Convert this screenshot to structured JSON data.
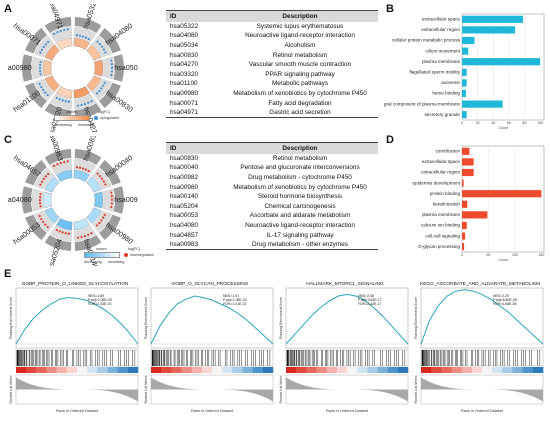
{
  "letters": {
    "a": "A",
    "b": "B",
    "c": "C",
    "d": "D",
    "e": "E"
  },
  "circos_a": {
    "labels": [
      "hsa05322",
      "hsa04080",
      "hsa05034",
      "hsa00830",
      "hsa04270",
      "hsa03320",
      "hsa01100",
      "hsa00980",
      "hsa00071",
      "hsa04971"
    ],
    "legend_title": "zscore",
    "legend_left": "decreasing",
    "legend_right": "increasing",
    "legend2_title": "log(FC)",
    "legend2_right": "upregulated",
    "accent": "#f08a4b",
    "dot": "#3f8fd8"
  },
  "circos_c": {
    "labels": [
      "hsa00830",
      "hsa00040",
      "hsa00982",
      "hsa00980",
      "hsa00140",
      "hsa05204",
      "hsa00053",
      "hsa04080",
      "hsa04657",
      "hsa00983"
    ],
    "legend_title": "zscore",
    "legend_left": "decreasing",
    "legend_right": "increasing",
    "legend2_title": "log(FC)",
    "legend2_right": "downregulated",
    "accent": "#5bb8f0",
    "dot": "#e03a2a"
  },
  "table_a": {
    "headers": [
      "ID",
      "Description"
    ],
    "rows": [
      [
        "hsa05322",
        "Systemic lupus erythematosus"
      ],
      [
        "hsa04080",
        "Neuroactive ligand-receptor interaction"
      ],
      [
        "hsa05034",
        "Alcoholism"
      ],
      [
        "hsa00830",
        "Retinol metabolism"
      ],
      [
        "hsa04270",
        "Vascular smooth muscle contraction"
      ],
      [
        "hsa03320",
        "PPAR signaling pathway"
      ],
      [
        "hsa01100",
        "Metabolic pathways"
      ],
      [
        "hsa00980",
        "Metabolism of xenobiotics by cytochrome P450"
      ],
      [
        "hsa00071",
        "Fatty acid degradation"
      ],
      [
        "hsa04971",
        "Gastric acid secretion"
      ]
    ]
  },
  "table_c": {
    "headers": [
      "ID",
      "Description"
    ],
    "rows": [
      [
        "hsa00830",
        "Retinol metabolism"
      ],
      [
        "hsa00040",
        "Pentose and glucuronate interconversions"
      ],
      [
        "hsa00982",
        "Drug metabolism - cytochrome P450"
      ],
      [
        "hsa00980",
        "Metabolism of xenobiotics by cytochrome P450"
      ],
      [
        "hsa00140",
        "Steroid hormone biosynthesis"
      ],
      [
        "hsa05204",
        "Chemical carcinogenesis"
      ],
      [
        "hsa00053",
        "Ascorbate and aldarate metabolism"
      ],
      [
        "hsa04080",
        "Neuroactive ligand-receptor interaction"
      ],
      [
        "hsa04657",
        "IL-17 signaling pathway"
      ],
      [
        "hsa00983",
        "Drug metabolism - other enzymes"
      ]
    ]
  },
  "chart_data": [
    {
      "panel": "B",
      "type": "bar",
      "orientation": "horizontal",
      "color": "#1fb8d8",
      "categories": [
        "extracellular space",
        "extracellular region",
        "cellular protein metabolic process",
        "cilium movement",
        "plasma membrane",
        "flagellated sperm motility",
        "axoneme",
        "heme binding",
        "integral component of plasma membrane",
        "secretory granule"
      ],
      "values": [
        78,
        68,
        16,
        8,
        100,
        6,
        6,
        5,
        52,
        6
      ],
      "xlim": [
        0,
        105
      ],
      "xticks": [
        0,
        20,
        40,
        60,
        80,
        100
      ],
      "xlabel": "Count"
    },
    {
      "panel": "D",
      "type": "bar",
      "orientation": "horizontal",
      "color": "#f04a2e",
      "categories": [
        "cornification",
        "extracellular space",
        "extracellular region",
        "epidermis development",
        "protein binding",
        "keratinization",
        "plasma membrane",
        "calcium ion binding",
        "cell-cell signaling",
        "O-glycan processing"
      ],
      "values": [
        14,
        22,
        22,
        3,
        150,
        10,
        48,
        9,
        6,
        4
      ],
      "xlim": [
        0,
        155
      ],
      "xticks": [
        0,
        50,
        100,
        150
      ],
      "xlabel": "Count"
    },
    {
      "panel": "E",
      "type": "line",
      "subtype": "gsea",
      "xlabel": "Rank in Ordered Dataset",
      "ylabel_top": "Running Enrichment Score",
      "ylabel_bottom": "Ranked List Metric",
      "plots": [
        {
          "title": "GOBP_PROTEIN_O_LINKED_GLYCOSYLATION",
          "nes": "NES=1.89",
          "pval": "P.adj=2.05E-03",
          "fdr": "FDR=2.33E-03",
          "es": [
            0,
            0.18,
            0.32,
            0.42,
            0.5,
            0.56,
            0.58,
            0.57,
            0.55,
            0.5,
            0.44,
            0.36,
            0.26,
            0.14,
            0.0
          ]
        },
        {
          "title": "GOBP_O_GLYCAN_PROCESSING",
          "nes": "NES=1.91",
          "pval": "P.adj=1.08E-02",
          "fdr": "FDR=1.01E-02",
          "es": [
            0,
            0.22,
            0.38,
            0.5,
            0.56,
            0.6,
            0.58,
            0.55,
            0.5,
            0.45,
            0.38,
            0.3,
            0.2,
            0.1,
            0.0
          ]
        },
        {
          "title": "HALLMARK_MTORC1_SIGNALING",
          "nes": "NES=2.06",
          "pval": "P.adj=3.63E-17",
          "fdr": "FDR=2.42E-17",
          "es": [
            0,
            0.12,
            0.24,
            0.36,
            0.46,
            0.54,
            0.6,
            0.62,
            0.6,
            0.55,
            0.46,
            0.36,
            0.24,
            0.12,
            0.0
          ]
        },
        {
          "title": "KEGG_ASCORBATE_AND_ALDARATE_METABOLISM",
          "nes": "NES=2.29",
          "pval": "P.adj=6.60E-05",
          "fdr": "FDR=4.66E-05",
          "es": [
            0,
            0.3,
            0.48,
            0.6,
            0.66,
            0.68,
            0.66,
            0.62,
            0.56,
            0.48,
            0.4,
            0.3,
            0.2,
            0.1,
            0.0
          ]
        }
      ]
    }
  ]
}
